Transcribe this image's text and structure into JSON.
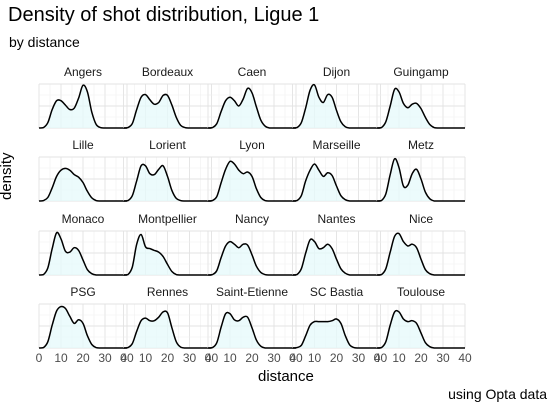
{
  "title": "Density of shot distribution, Ligue 1",
  "subtitle": "by distance",
  "caption": "using Opta data",
  "chart_data": {
    "type": "area",
    "xlabel": "distance",
    "ylabel": "density",
    "xlim": [
      0,
      40
    ],
    "xticks": [
      0,
      10,
      20,
      30,
      40
    ],
    "grid": true,
    "fill_color": "#e6f9fb",
    "line_color": "#000000",
    "x": [
      0,
      2,
      4,
      6,
      8,
      10,
      12,
      14,
      16,
      18,
      20,
      22,
      24,
      26,
      28,
      30,
      32,
      34,
      36,
      38,
      40
    ],
    "panels": [
      {
        "name": "Angers",
        "values": [
          0,
          0.01,
          0.12,
          0.42,
          0.62,
          0.62,
          0.52,
          0.42,
          0.45,
          0.68,
          0.97,
          0.82,
          0.36,
          0.08,
          0.01,
          0,
          0,
          0,
          0,
          0,
          0
        ]
      },
      {
        "name": "Bordeaux",
        "values": [
          0,
          0.01,
          0.1,
          0.42,
          0.7,
          0.76,
          0.64,
          0.54,
          0.58,
          0.74,
          0.74,
          0.52,
          0.24,
          0.06,
          0.01,
          0,
          0,
          0,
          0,
          0,
          0
        ]
      },
      {
        "name": "Caen",
        "values": [
          0,
          0.01,
          0.1,
          0.38,
          0.62,
          0.7,
          0.62,
          0.5,
          0.66,
          0.9,
          0.8,
          0.48,
          0.18,
          0.04,
          0,
          0,
          0,
          0,
          0,
          0,
          0
        ]
      },
      {
        "name": "Dijon",
        "values": [
          0,
          0.01,
          0.12,
          0.46,
          0.86,
          0.98,
          0.7,
          0.58,
          0.76,
          0.7,
          0.4,
          0.14,
          0.03,
          0,
          0,
          0,
          0,
          0,
          0,
          0,
          0
        ]
      },
      {
        "name": "Guingamp",
        "values": [
          0,
          0.01,
          0.14,
          0.5,
          0.88,
          0.82,
          0.56,
          0.46,
          0.54,
          0.56,
          0.44,
          0.24,
          0.08,
          0.01,
          0,
          0,
          0,
          0,
          0,
          0,
          0
        ]
      },
      {
        "name": "Lille",
        "values": [
          0,
          0.01,
          0.08,
          0.3,
          0.56,
          0.7,
          0.74,
          0.7,
          0.6,
          0.54,
          0.42,
          0.22,
          0.07,
          0.01,
          0,
          0,
          0,
          0,
          0,
          0,
          0
        ]
      },
      {
        "name": "Lorient",
        "values": [
          0,
          0.01,
          0.12,
          0.46,
          0.8,
          0.8,
          0.62,
          0.6,
          0.72,
          0.8,
          0.56,
          0.24,
          0.06,
          0.01,
          0,
          0,
          0,
          0,
          0,
          0,
          0
        ]
      },
      {
        "name": "Lyon",
        "values": [
          0,
          0.01,
          0.1,
          0.42,
          0.72,
          0.9,
          0.84,
          0.7,
          0.62,
          0.66,
          0.56,
          0.28,
          0.08,
          0.01,
          0,
          0,
          0,
          0,
          0,
          0,
          0
        ]
      },
      {
        "name": "Marseille",
        "values": [
          0,
          0.01,
          0.12,
          0.46,
          0.7,
          0.84,
          0.7,
          0.56,
          0.64,
          0.58,
          0.34,
          0.12,
          0.03,
          0,
          0,
          0,
          0,
          0,
          0,
          0,
          0
        ]
      },
      {
        "name": "Metz",
        "values": [
          0,
          0.01,
          0.16,
          0.6,
          0.96,
          0.76,
          0.34,
          0.36,
          0.62,
          0.72,
          0.5,
          0.2,
          0.05,
          0,
          0,
          0,
          0,
          0,
          0,
          0,
          0
        ]
      },
      {
        "name": "Monaco",
        "values": [
          0,
          0.01,
          0.16,
          0.6,
          0.96,
          0.82,
          0.54,
          0.52,
          0.62,
          0.56,
          0.34,
          0.12,
          0.03,
          0,
          0,
          0,
          0,
          0,
          0,
          0,
          0
        ]
      },
      {
        "name": "Montpellier",
        "values": [
          0,
          0.01,
          0.18,
          0.7,
          0.92,
          0.64,
          0.6,
          0.56,
          0.52,
          0.42,
          0.24,
          0.08,
          0.01,
          0,
          0,
          0,
          0,
          0,
          0,
          0,
          0
        ]
      },
      {
        "name": "Nancy",
        "values": [
          0,
          0.01,
          0.1,
          0.4,
          0.66,
          0.76,
          0.7,
          0.62,
          0.7,
          0.68,
          0.46,
          0.2,
          0.06,
          0.01,
          0,
          0,
          0,
          0,
          0,
          0,
          0
        ]
      },
      {
        "name": "Nantes",
        "values": [
          0,
          0.01,
          0.14,
          0.5,
          0.8,
          0.76,
          0.6,
          0.62,
          0.7,
          0.6,
          0.36,
          0.14,
          0.04,
          0,
          0,
          0,
          0,
          0,
          0,
          0,
          0
        ]
      },
      {
        "name": "Nice",
        "values": [
          0,
          0.01,
          0.14,
          0.52,
          0.88,
          0.94,
          0.76,
          0.66,
          0.7,
          0.62,
          0.36,
          0.12,
          0.03,
          0,
          0,
          0,
          0,
          0,
          0,
          0,
          0
        ]
      },
      {
        "name": "PSG",
        "values": [
          0,
          0.01,
          0.14,
          0.52,
          0.84,
          0.94,
          0.9,
          0.72,
          0.56,
          0.64,
          0.56,
          0.28,
          0.08,
          0.01,
          0,
          0,
          0,
          0,
          0,
          0,
          0
        ]
      },
      {
        "name": "Rennes",
        "values": [
          0,
          0.01,
          0.1,
          0.38,
          0.62,
          0.68,
          0.62,
          0.62,
          0.7,
          0.82,
          0.8,
          0.46,
          0.14,
          0.02,
          0,
          0,
          0,
          0,
          0,
          0,
          0
        ]
      },
      {
        "name": "Saint-Etienne",
        "values": [
          0,
          0.01,
          0.12,
          0.48,
          0.78,
          0.78,
          0.64,
          0.62,
          0.7,
          0.7,
          0.46,
          0.18,
          0.04,
          0,
          0,
          0,
          0,
          0,
          0,
          0,
          0
        ]
      },
      {
        "name": "SC Bastia",
        "values": [
          0,
          0.01,
          0.06,
          0.28,
          0.52,
          0.6,
          0.6,
          0.6,
          0.6,
          0.62,
          0.66,
          0.56,
          0.28,
          0.07,
          0.01,
          0,
          0,
          0,
          0,
          0,
          0
        ]
      },
      {
        "name": "Toulouse",
        "values": [
          0,
          0.01,
          0.14,
          0.52,
          0.82,
          0.82,
          0.66,
          0.6,
          0.62,
          0.56,
          0.34,
          0.12,
          0.03,
          0,
          0,
          0,
          0,
          0,
          0,
          0,
          0
        ]
      }
    ]
  }
}
